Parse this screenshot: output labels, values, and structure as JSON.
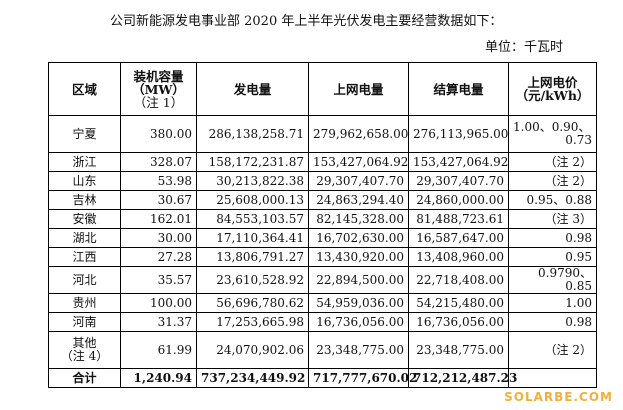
{
  "intro": "公司新能源发电事业部 2020 年上半年光伏发电主要经营数据如下：",
  "unit": "单位：千瓦时",
  "table": {
    "headers": {
      "region": "区域",
      "capacity_1": "装机容量",
      "capacity_2": "（MW）",
      "capacity_3": "（注 1）",
      "generation": "发电量",
      "grid": "上网电量",
      "settlement": "结算电量",
      "price_1": "上网电价",
      "price_2": "（元/kWh）"
    },
    "rows": [
      {
        "region": "宁夏",
        "capacity": "380.00",
        "generation": "286,138,258.71",
        "grid": "279,962,658.00",
        "settlement": "276,113,965.00",
        "price_line1": "1.00、0.90、",
        "price_line2": "0.73"
      },
      {
        "region": "浙江",
        "capacity": "328.07",
        "generation": "158,172,231.87",
        "grid": "153,427,064.92",
        "settlement": "153,427,064.92",
        "price": "（注 2）"
      },
      {
        "region": "山东",
        "capacity": "53.98",
        "generation": "30,213,822.38",
        "grid": "29,307,407.70",
        "settlement": "29,307,407.70",
        "price": "（注 2）"
      },
      {
        "region": "吉林",
        "capacity": "30.67",
        "generation": "25,608,000.13",
        "grid": "24,863,294.40",
        "settlement": "24,860,000.00",
        "price": "0.95、0.88"
      },
      {
        "region": "安徽",
        "capacity": "162.01",
        "generation": "84,553,103.57",
        "grid": "82,145,328.00",
        "settlement": "81,488,723.61",
        "price": "（注 3）"
      },
      {
        "region": "湖北",
        "capacity": "30.00",
        "generation": "17,110,364.41",
        "grid": "16,702,630.00",
        "settlement": "16,587,647.00",
        "price": "0.98"
      },
      {
        "region": "江西",
        "capacity": "27.28",
        "generation": "13,806,791.27",
        "grid": "13,430,920.00",
        "settlement": "13,408,960.00",
        "price": "0.95"
      },
      {
        "region": "河北",
        "capacity": "35.57",
        "generation": "23,610,528.92",
        "grid": "22,894,500.00",
        "settlement": "22,718,408.00",
        "price": "0.9790、0.85"
      },
      {
        "region": "贵州",
        "capacity": "100.00",
        "generation": "56,696,780.62",
        "grid": "54,959,036.00",
        "settlement": "54,215,480.00",
        "price": "1.00"
      },
      {
        "region": "河南",
        "capacity": "31.37",
        "generation": "17,253,665.98",
        "grid": "16,736,056.00",
        "settlement": "16,736,056.00",
        "price": "0.98"
      },
      {
        "region_line1": "其他",
        "region_line2": "（注 4）",
        "capacity": "61.99",
        "generation": "24,070,902.06",
        "grid": "23,348,775.00",
        "settlement": "23,348,775.00",
        "price": "（注 2）"
      }
    ],
    "total": {
      "region": "合计",
      "capacity": "1,240.94",
      "generation": "737,234,449.92",
      "grid": "717,777,670.02",
      "settlement": "712,212,487.23",
      "price": ""
    }
  },
  "watermark": "SOLARBE.COM"
}
